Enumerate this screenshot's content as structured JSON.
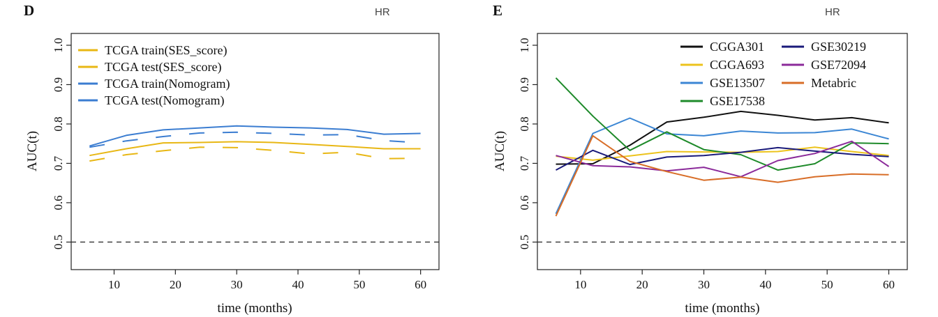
{
  "header": {
    "panel_d_letter": "D",
    "panel_e_letter": "E",
    "cropped_label_left": "HR",
    "cropped_label_right": "HR"
  },
  "chart_data": [
    {
      "type": "line",
      "panel": "D",
      "xlabel": "time (months)",
      "ylabel": "AUC(t)",
      "xlim": [
        3,
        63
      ],
      "ylim": [
        0.43,
        1.03
      ],
      "xticks": [
        10,
        20,
        30,
        40,
        50,
        60
      ],
      "yticks": [
        0.5,
        0.6,
        0.7,
        0.8,
        0.9,
        1.0
      ],
      "ytick_labels": [
        "0.5",
        "0.6",
        "0.7",
        "0.8",
        "0.9",
        "1.0"
      ],
      "reference_line": 0.5,
      "grid": false,
      "legend_position": "top-left",
      "series": [
        {
          "name": "TCGA train(SES_score)",
          "color": "#e8b714",
          "dash": false,
          "x": [
            6,
            12,
            18,
            24,
            30,
            36,
            42,
            48,
            54,
            60
          ],
          "y": [
            0.72,
            0.737,
            0.752,
            0.753,
            0.755,
            0.753,
            0.748,
            0.743,
            0.737,
            0.737
          ]
        },
        {
          "name": "TCGA test(SES_score)",
          "color": "#e8b714",
          "dash": true,
          "x": [
            6,
            12,
            18,
            24,
            30,
            36,
            42,
            48,
            54,
            60
          ],
          "y": [
            0.706,
            0.722,
            0.732,
            0.741,
            0.74,
            0.733,
            0.724,
            0.728,
            0.712,
            0.713
          ]
        },
        {
          "name": "TCGA train(Nomogram)",
          "color": "#3b7dd1",
          "dash": false,
          "x": [
            6,
            12,
            18,
            24,
            30,
            36,
            42,
            48,
            54,
            60
          ],
          "y": [
            0.744,
            0.771,
            0.785,
            0.79,
            0.795,
            0.792,
            0.79,
            0.786,
            0.774,
            0.776
          ]
        },
        {
          "name": "TCGA test(Nomogram)",
          "color": "#3b7dd1",
          "dash": true,
          "x": [
            6,
            12,
            18,
            24,
            30,
            36,
            42,
            48,
            54,
            60
          ],
          "y": [
            0.741,
            0.757,
            0.768,
            0.777,
            0.779,
            0.776,
            0.772,
            0.773,
            0.758,
            0.752
          ]
        }
      ]
    },
    {
      "type": "line",
      "panel": "E",
      "xlabel": "time (months)",
      "ylabel": "AUC(t)",
      "xlim": [
        3,
        63
      ],
      "ylim": [
        0.43,
        1.03
      ],
      "xticks": [
        10,
        20,
        30,
        40,
        50,
        60
      ],
      "yticks": [
        0.5,
        0.6,
        0.7,
        0.8,
        0.9,
        1.0
      ],
      "ytick_labels": [
        "0.5",
        "0.6",
        "0.7",
        "0.8",
        "0.9",
        "1.0"
      ],
      "reference_line": 0.5,
      "grid": false,
      "legend_position": "top-right",
      "series": [
        {
          "name": "CGGA301",
          "color": "#111111",
          "dash": false,
          "x": [
            6,
            12,
            18,
            24,
            30,
            36,
            42,
            48,
            54,
            60
          ],
          "y": [
            0.698,
            0.699,
            0.746,
            0.805,
            0.817,
            0.832,
            0.822,
            0.81,
            0.816,
            0.803
          ]
        },
        {
          "name": "CGGA693",
          "color": "#ecc31c",
          "dash": false,
          "x": [
            6,
            12,
            18,
            24,
            30,
            36,
            42,
            48,
            54,
            60
          ],
          "y": [
            0.718,
            0.708,
            0.719,
            0.73,
            0.729,
            0.728,
            0.73,
            0.741,
            0.73,
            0.72
          ]
        },
        {
          "name": "GSE13507",
          "color": "#3b86d4",
          "dash": false,
          "x": [
            6,
            12,
            18,
            24,
            30,
            36,
            42,
            48,
            54,
            60
          ],
          "y": [
            0.572,
            0.776,
            0.815,
            0.775,
            0.77,
            0.782,
            0.777,
            0.778,
            0.787,
            0.762
          ]
        },
        {
          "name": "GSE17538",
          "color": "#1e8a2a",
          "dash": false,
          "x": [
            6,
            12,
            18,
            24,
            30,
            36,
            42,
            48,
            54,
            60
          ],
          "y": [
            0.917,
            0.82,
            0.733,
            0.78,
            0.735,
            0.722,
            0.683,
            0.699,
            0.752,
            0.75
          ]
        },
        {
          "name": "GSE30219",
          "color": "#1a1a7a",
          "dash": false,
          "x": [
            6,
            12,
            18,
            24,
            30,
            36,
            42,
            48,
            54,
            60
          ],
          "y": [
            0.683,
            0.733,
            0.697,
            0.716,
            0.72,
            0.728,
            0.74,
            0.731,
            0.723,
            0.717
          ]
        },
        {
          "name": "GSE72094",
          "color": "#8b2a9a",
          "dash": false,
          "x": [
            6,
            12,
            18,
            24,
            30,
            36,
            42,
            48,
            54,
            60
          ],
          "y": [
            0.72,
            0.694,
            0.691,
            0.681,
            0.69,
            0.666,
            0.707,
            0.725,
            0.756,
            0.692
          ]
        },
        {
          "name": "Metabric",
          "color": "#d86d27",
          "dash": false,
          "x": [
            6,
            12,
            18,
            24,
            30,
            36,
            42,
            48,
            54,
            60
          ],
          "y": [
            0.566,
            0.77,
            0.705,
            0.679,
            0.657,
            0.665,
            0.652,
            0.666,
            0.673,
            0.671
          ]
        }
      ],
      "legend_order": [
        "CGGA301",
        "GSE30219",
        "CGGA693",
        "GSE72094",
        "GSE13507",
        "Metabric",
        "GSE17538"
      ]
    }
  ]
}
